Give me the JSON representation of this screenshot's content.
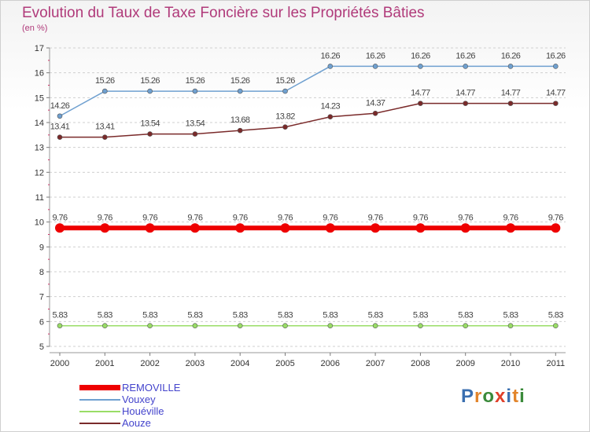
{
  "title": "Evolution du Taux de Taxe Foncière sur les Propriétés Bâties",
  "subtitle": "(en %)",
  "brand": {
    "text": "Proxiti",
    "letter_colors": [
      "#3a6fb0",
      "#e2842a",
      "#3a8a3a",
      "#e0402a",
      "#3a6fb0",
      "#e2842a",
      "#3a8a3a"
    ]
  },
  "chart_data": {
    "type": "line",
    "title": "Evolution du Taux de Taxe Foncière sur les Propriétés Bâties",
    "ylabel": "(en %)",
    "xlabel": "",
    "ylim": [
      5,
      17
    ],
    "yticks": [
      "5",
      "6",
      "7",
      "8",
      "9",
      "10",
      "11",
      "12",
      "13",
      "14",
      "15",
      "16",
      "17"
    ],
    "grid": "horizontal",
    "categories": [
      "2000",
      "2001",
      "2002",
      "2003",
      "2004",
      "2005",
      "2006",
      "2007",
      "2008",
      "2009",
      "2010",
      "2011"
    ],
    "series": [
      {
        "name": "REMOVILLE",
        "color": "#ee0000",
        "emphasis": true,
        "values": [
          9.76,
          9.76,
          9.76,
          9.76,
          9.76,
          9.76,
          9.76,
          9.76,
          9.76,
          9.76,
          9.76,
          9.76
        ],
        "labels": [
          "9.76",
          "9.76",
          "9.76",
          "9.76",
          "9.76",
          "9.76",
          "9.76",
          "9.76",
          "9.76",
          "9.76",
          "9.76",
          "9.76"
        ]
      },
      {
        "name": "Vouxey",
        "color": "#6fa0d0",
        "values": [
          14.26,
          15.26,
          15.26,
          15.26,
          15.26,
          15.26,
          16.26,
          16.26,
          16.26,
          16.26,
          16.26,
          16.26
        ],
        "labels": [
          "14.26",
          "15.26",
          "15.26",
          "15.26",
          "15.26",
          "15.26",
          "16.26",
          "16.26",
          "16.26",
          "16.26",
          "16.26",
          "16.26"
        ]
      },
      {
        "name": "Houéville",
        "color": "#99dd66",
        "values": [
          5.83,
          5.83,
          5.83,
          5.83,
          5.83,
          5.83,
          5.83,
          5.83,
          5.83,
          5.83,
          5.83,
          5.83
        ],
        "labels": [
          "5.83",
          "5.83",
          "5.83",
          "5.83",
          "5.83",
          "5.83",
          "5.83",
          "5.83",
          "5.83",
          "5.83",
          "5.83",
          "5.83"
        ]
      },
      {
        "name": "Aouze",
        "color": "#7a2a2a",
        "values": [
          13.41,
          13.41,
          13.54,
          13.54,
          13.68,
          13.82,
          14.23,
          14.37,
          14.77,
          14.77,
          14.77,
          14.77
        ],
        "labels": [
          "13.41",
          "13.41",
          "13.54",
          "13.54",
          "13.68",
          "13.82",
          "14.23",
          "14.37",
          "14.77",
          "14.77",
          "14.77",
          "14.77"
        ]
      }
    ],
    "legend_position": "bottom-left"
  }
}
